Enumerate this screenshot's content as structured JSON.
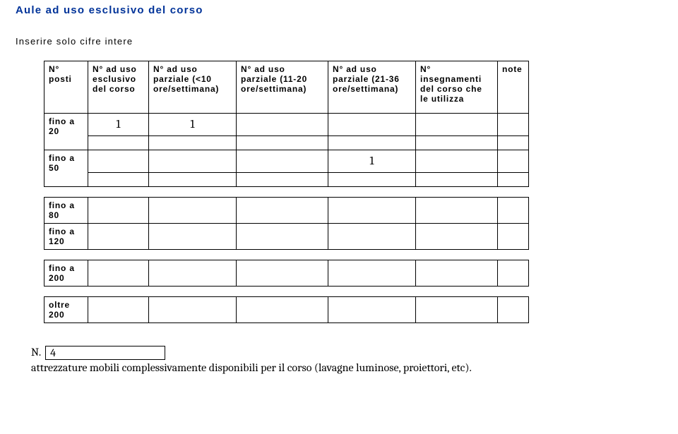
{
  "title": "Aule ad uso esclusivo del corso",
  "subtitle": "Inserire solo cifre intere",
  "headers": {
    "posti": "N° posti",
    "esclusivo": "N° ad uso esclusivo del corso",
    "parziale_lt10": "N° ad uso parziale (<10 ore/settimana)",
    "parziale_11_20": "N° ad uso parziale (11-20 ore/settimana)",
    "parziale_21_36": "N° ad uso parziale (21-36 ore/settimana)",
    "insegnamenti": "N° insegnamenti del corso che le utilizza",
    "note": "note"
  },
  "rows": {
    "r20": {
      "label": "fino a 20",
      "esclusivo": "1",
      "p10": "1",
      "p1120": "",
      "p2136": "",
      "inseg": "",
      "note": ""
    },
    "r50": {
      "label": "fino a 50",
      "esclusivo": "",
      "p10": "",
      "p1120": "",
      "p2136": "1",
      "inseg": "",
      "note": ""
    },
    "r80": {
      "label": "fino a 80",
      "esclusivo": "",
      "p10": "",
      "p1120": "",
      "p2136": "",
      "inseg": "",
      "note": ""
    },
    "r120": {
      "label": "fino a 120",
      "esclusivo": "",
      "p10": "",
      "p1120": "",
      "p2136": "",
      "inseg": "",
      "note": ""
    },
    "r200": {
      "label": "fino a 200",
      "esclusivo": "",
      "p10": "",
      "p1120": "",
      "p2136": "",
      "inseg": "",
      "note": ""
    },
    "ro200": {
      "label": "oltre 200",
      "esclusivo": "",
      "p10": "",
      "p1120": "",
      "p2136": "",
      "inseg": "",
      "note": ""
    }
  },
  "footer": {
    "n_label": "N.",
    "box_value": "4",
    "text": "attrezzature mobili complessivamente disponibili per il corso (lavagne luminose, proiettori, etc)."
  },
  "style": {
    "title_color": "#003399",
    "border_color": "#000000",
    "background": "#ffffff",
    "data_font": "Cambria",
    "ui_font": "Verdana"
  }
}
